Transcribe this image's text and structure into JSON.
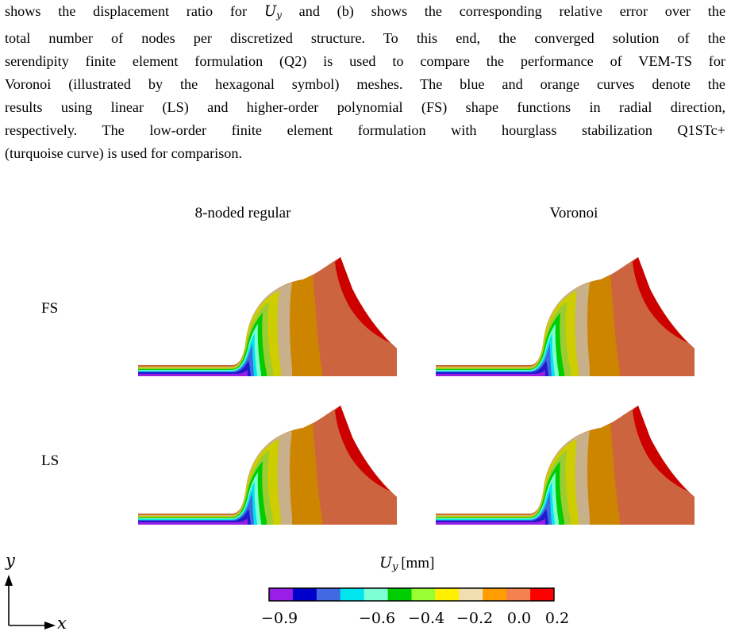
{
  "paragraph": {
    "line1": "shows the displacement ratio for",
    "line1_math": "U",
    "line1_sub": "y",
    "line1_rest": "and (b) shows the corresponding relative error over the",
    "line2": "total number of nodes per discretized structure.  To this end, the converged solution of the",
    "line3": "serendipity finite element formulation (Q2) is used to compare the performance of VEM-TS for",
    "line4": "Voronoi (illustrated by the hexagonal symbol) meshes. The blue and orange curves denote the",
    "line5": "results using linear (LS) and higher-order polynomial (FS) shape functions in radial direction,",
    "line6": "respectively.  The low-order finite element formulation with hourglass stabilization Q1STc+",
    "line7": "(turquoise curve) is used for comparison."
  },
  "figure": {
    "column_titles": [
      "8-noded regular",
      "Voronoi"
    ],
    "row_labels": [
      "FS",
      "LS"
    ],
    "colorbar": {
      "title_symbol": "U",
      "title_sub": "y",
      "title_unit": "[mm]",
      "ticks": [
        "−0.9",
        "−0.6",
        "−0.4",
        "−0.2",
        "0.0",
        "0.2"
      ],
      "colors": [
        "#9a1fe6",
        "#0000cd",
        "#4169e1",
        "#00e5ee",
        "#7fffd4",
        "#00cd00",
        "#9aff32",
        "#ffef00",
        "#f0deb0",
        "#ff9c00",
        "#f58050",
        "#ff0000"
      ]
    },
    "contour_colors": {
      "violet": "#9a1fe6",
      "blue": "#1c1ccd",
      "royal": "#4169e1",
      "cyan": "#00e5ee",
      "aqua": "#7fffd4",
      "green": "#00cd00",
      "lime": "#9acd32",
      "yellow": "#cdcd00",
      "tan": "#c8b08a",
      "orange": "#cd8500",
      "coral": "#cd6440",
      "red": "#cd0000"
    },
    "axes": {
      "y": "y",
      "x": "x"
    }
  }
}
